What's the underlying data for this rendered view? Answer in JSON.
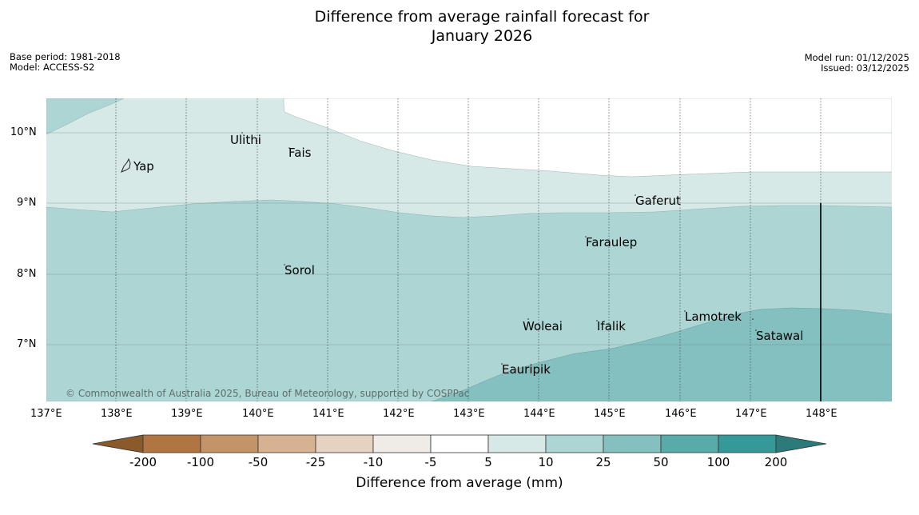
{
  "title": {
    "line1": "Difference from average rainfall forecast for",
    "line2": "January 2026"
  },
  "meta": {
    "base_period": "Base period: 1981-2018",
    "model": "Model: ACCESS-S2",
    "model_run": "Model run: 01/12/2025",
    "issued": "Issued: 03/12/2025"
  },
  "axes": {
    "lat_labels": [
      "10°N",
      "9°N",
      "8°N",
      "7°N"
    ],
    "lon_labels": [
      "137°E",
      "138°E",
      "139°E",
      "140°E",
      "141°E",
      "142°E",
      "143°E",
      "144°E",
      "145°E",
      "146°E",
      "147°E",
      "148°E"
    ]
  },
  "places": {
    "ulithi": "Ulithi",
    "fais": "Fais",
    "yap": "Yap",
    "gaferut": "Gaferut",
    "faraulep": "Faraulep",
    "sorol": "Sorol",
    "woleai": "Woleai",
    "ifalik": "Ifalik",
    "lamotrek": "Lamotrek",
    "satawal": "Satawal",
    "eauripik": "Eauripik"
  },
  "copyright": "© Commonwealth of Australia 2025, Bureau of Meteorology, supported by COSPPac",
  "colorbar": {
    "ticks": [
      "-200",
      "-100",
      "-50",
      "-25",
      "-10",
      "-5",
      "5",
      "10",
      "25",
      "50",
      "100",
      "200"
    ],
    "label": "Difference from average (mm)",
    "colors": [
      "#8b5a2b",
      "#b07540",
      "#c39468",
      "#d6b293",
      "#e6d2c1",
      "#efebe6",
      "#ffffff",
      "#d6e9e7",
      "#add5d4",
      "#84c0bf",
      "#58aba9",
      "#35999a",
      "#2c7a7a"
    ]
  },
  "map_colors": {
    "band_5_10": "#d6e9e7",
    "band_10_25": "#add5d4",
    "band_25_50": "#84c0bf",
    "band_neutral": "#ffffff"
  }
}
